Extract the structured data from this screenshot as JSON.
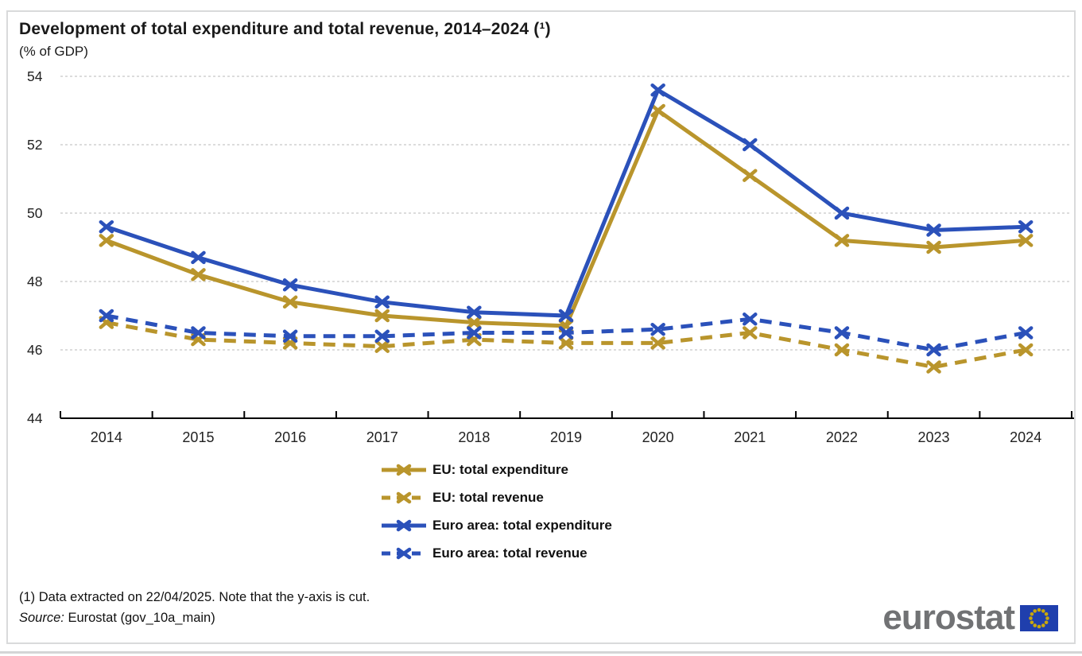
{
  "chart": {
    "title": "Development of total expenditure and total revenue, 2014–2024 (¹)",
    "subtitle": "(% of GDP)"
  },
  "chart_data": {
    "type": "line",
    "categories": [
      "2014",
      "2015",
      "2016",
      "2017",
      "2018",
      "2019",
      "2020",
      "2021",
      "2022",
      "2023",
      "2024"
    ],
    "series": [
      {
        "name": "EU: total expenditure",
        "color": "#B9952C",
        "dash": "solid",
        "marker": "x",
        "values": [
          49.2,
          48.2,
          47.4,
          47.0,
          46.8,
          46.7,
          53.0,
          51.1,
          49.2,
          49.0,
          49.2
        ]
      },
      {
        "name": "EU: total revenue",
        "color": "#B9952C",
        "dash": "dashed",
        "marker": "x",
        "values": [
          46.8,
          46.3,
          46.2,
          46.1,
          46.3,
          46.2,
          46.2,
          46.5,
          46.0,
          45.5,
          46.0
        ]
      },
      {
        "name": "Euro area: total expenditure",
        "color": "#2B51BA",
        "dash": "solid",
        "marker": "x",
        "values": [
          49.6,
          48.7,
          47.9,
          47.4,
          47.1,
          47.0,
          53.6,
          52.0,
          50.0,
          49.5,
          49.6
        ]
      },
      {
        "name": "Euro area: total revenue",
        "color": "#2B51BA",
        "dash": "dashed",
        "marker": "x",
        "values": [
          47.0,
          46.5,
          46.4,
          46.4,
          46.5,
          46.5,
          46.6,
          46.9,
          46.5,
          46.0,
          46.5
        ]
      }
    ],
    "ylim": [
      44,
      54
    ],
    "yticks": [
      44,
      46,
      48,
      50,
      52,
      54
    ],
    "grid": "horizontal-dotted",
    "grid_color": "#c6c6c6",
    "axis_color": "#000000",
    "legend_position": "bottom",
    "note": "y-axis is cut at 44"
  },
  "footer": {
    "note": "(1) Data extracted on 22/04/2025. Note that the y-axis is cut.",
    "source_label": "Source:",
    "source_text": " Eurostat (gov_10a_main)"
  },
  "logo": {
    "text": "eurostat",
    "text_color": "#717274",
    "flag_blue": "#1F3FAD",
    "star_color": "#C9A70D"
  }
}
